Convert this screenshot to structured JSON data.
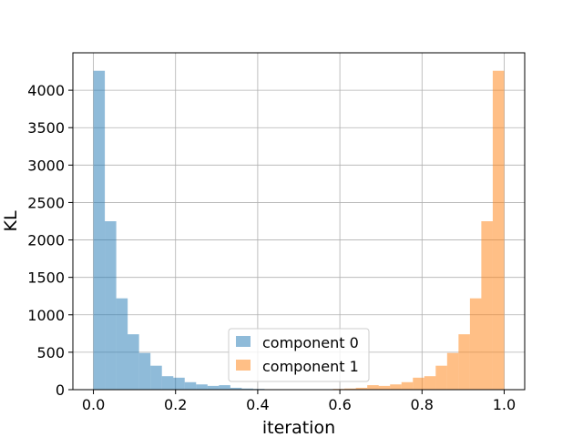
{
  "chart_data": {
    "type": "bar",
    "subtype": "histogram",
    "xlabel": "iteration",
    "ylabel": "KL",
    "xlim": [
      -0.05,
      1.05
    ],
    "ylim": [
      0,
      4500
    ],
    "grid": true,
    "legend_position": "lower-center",
    "x_ticks": [
      0.0,
      0.2,
      0.4,
      0.6,
      0.8,
      1.0
    ],
    "x_tick_labels": [
      "0.0",
      "0.2",
      "0.4",
      "0.6",
      "0.8",
      "1.0"
    ],
    "y_ticks": [
      0,
      500,
      1000,
      1500,
      2000,
      2500,
      3000,
      3500,
      4000
    ],
    "y_tick_labels": [
      "0",
      "500",
      "1000",
      "1500",
      "2000",
      "2500",
      "3000",
      "3500",
      "4000"
    ],
    "bin_width": 0.0278,
    "series": [
      {
        "name": "component 0",
        "color": "#1f77b4",
        "opacity": 0.5,
        "bin_starts": [
          0.0,
          0.0278,
          0.0556,
          0.0833,
          0.1111,
          0.1389,
          0.1667,
          0.1944,
          0.2222,
          0.25,
          0.2778,
          0.3056,
          0.3333,
          0.3611,
          0.3889
        ],
        "values": [
          4260,
          2250,
          1220,
          740,
          490,
          320,
          180,
          160,
          100,
          70,
          50,
          60,
          25,
          15,
          10
        ]
      },
      {
        "name": "component 1",
        "color": "#ff7f0e",
        "opacity": 0.5,
        "bin_starts": [
          0.5833,
          0.6111,
          0.6389,
          0.6667,
          0.6944,
          0.7222,
          0.75,
          0.7778,
          0.8056,
          0.8333,
          0.8611,
          0.8889,
          0.9167,
          0.9444,
          0.9722
        ],
        "values": [
          10,
          15,
          25,
          60,
          50,
          70,
          100,
          160,
          180,
          320,
          490,
          740,
          1220,
          2250,
          4260
        ]
      }
    ]
  }
}
